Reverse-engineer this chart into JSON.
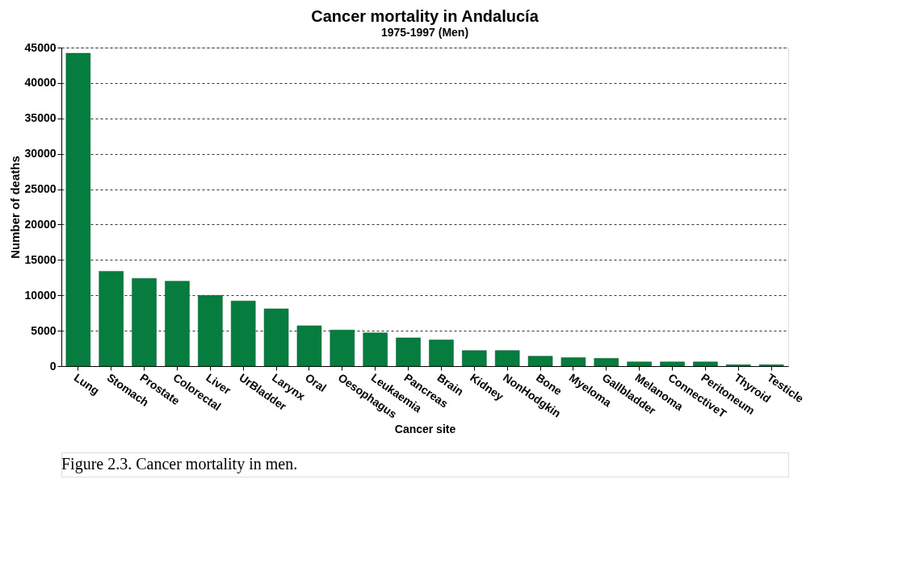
{
  "chart_data": {
    "type": "bar",
    "title": "Cancer mortality in Andalucía",
    "subtitle": "1975-1997 (Men)",
    "xlabel": "Cancer site",
    "ylabel": "Number of deaths",
    "categories": [
      "Lung",
      "Stomach",
      "Prostate",
      "Colorectal",
      "Liver",
      "UrBladder",
      "Larynx",
      "Oral",
      "Oesophagus",
      "Leukaemia",
      "Pancreas",
      "Brain",
      "Kidney",
      "NonHodgkin",
      "Bone",
      "Myeloma",
      "Gallbladder",
      "Melanoma",
      "ConnectiveT",
      "Peritoneum",
      "Thyroid",
      "Testicle"
    ],
    "values": [
      44200,
      13400,
      12400,
      12000,
      10000,
      9200,
      8100,
      5700,
      5100,
      4700,
      4000,
      3700,
      2200,
      2200,
      1400,
      1200,
      1100,
      600,
      600,
      600,
      200,
      200
    ],
    "color": "#067c3e",
    "ylim": [
      0,
      45000
    ],
    "yticks": [
      0,
      5000,
      10000,
      15000,
      20000,
      25000,
      30000,
      35000,
      40000,
      45000
    ],
    "grid": "y",
    "annotations": [
      "Figure 2.3. Cancer mortality in men."
    ]
  }
}
